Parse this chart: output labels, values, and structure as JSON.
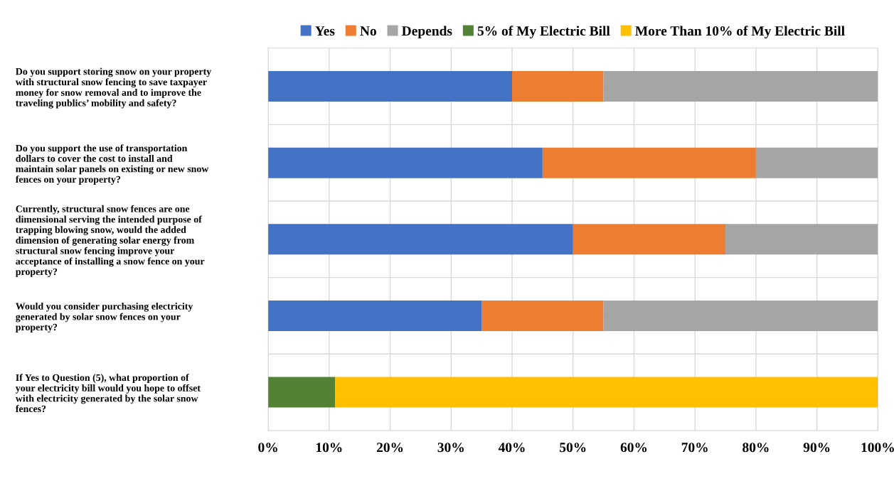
{
  "chart_data": {
    "type": "bar",
    "orientation": "horizontal",
    "stacked": true,
    "categories": [
      "Do you support storing snow on your property\nwith structural snow fencing to save taxpayer\nmoney for snow removal and to improve the\ntraveling publics’ mobility and safety?",
      "Do you support the use of transportation\ndollars to cover the cost to install and\nmaintain solar panels on existing or new snow\nfences on your property?",
      "Currently, structural snow fences are one\ndimensional serving the intended purpose of\ntrapping blowing snow, would the added\ndimension of generating solar energy from\nstructural snow fencing improve your\nacceptance of installing a snow fence on your\nproperty?",
      "Would you consider purchasing electricity\ngenerated by solar snow fences on your\nproperty?",
      "If Yes to Question (5), what proportion of\nyour electricity bill would you hope to offset\nwith electricity generated by the solar snow\nfences?"
    ],
    "series": [
      {
        "name": "Yes",
        "color": "#4472c4",
        "values": [
          40,
          45,
          50,
          35,
          null
        ]
      },
      {
        "name": "No",
        "color": "#ed7d31",
        "values": [
          15,
          35,
          25,
          20,
          null
        ]
      },
      {
        "name": "Depends",
        "color": "#a5a5a5",
        "values": [
          45,
          20,
          25,
          45,
          null
        ]
      },
      {
        "name": "5% of My Electric Bill",
        "color": "#548235",
        "values": [
          null,
          null,
          null,
          null,
          11
        ]
      },
      {
        "name": "More Than 10% of My Electric Bill",
        "color": "#ffc000",
        "values": [
          null,
          null,
          null,
          null,
          89
        ]
      }
    ],
    "xlim": [
      0,
      100
    ],
    "xticks": [
      {
        "value": 0,
        "label": "0%"
      },
      {
        "value": 10,
        "label": "10%"
      },
      {
        "value": 20,
        "label": "20%"
      },
      {
        "value": 30,
        "label": "30%"
      },
      {
        "value": 40,
        "label": "40%"
      },
      {
        "value": 50,
        "label": "50%"
      },
      {
        "value": 60,
        "label": "60%"
      },
      {
        "value": 70,
        "label": "70%"
      },
      {
        "value": 80,
        "label": "80%"
      },
      {
        "value": 90,
        "label": "90%"
      },
      {
        "value": 100,
        "label": "100%"
      }
    ],
    "grid": true,
    "legend": "top"
  }
}
